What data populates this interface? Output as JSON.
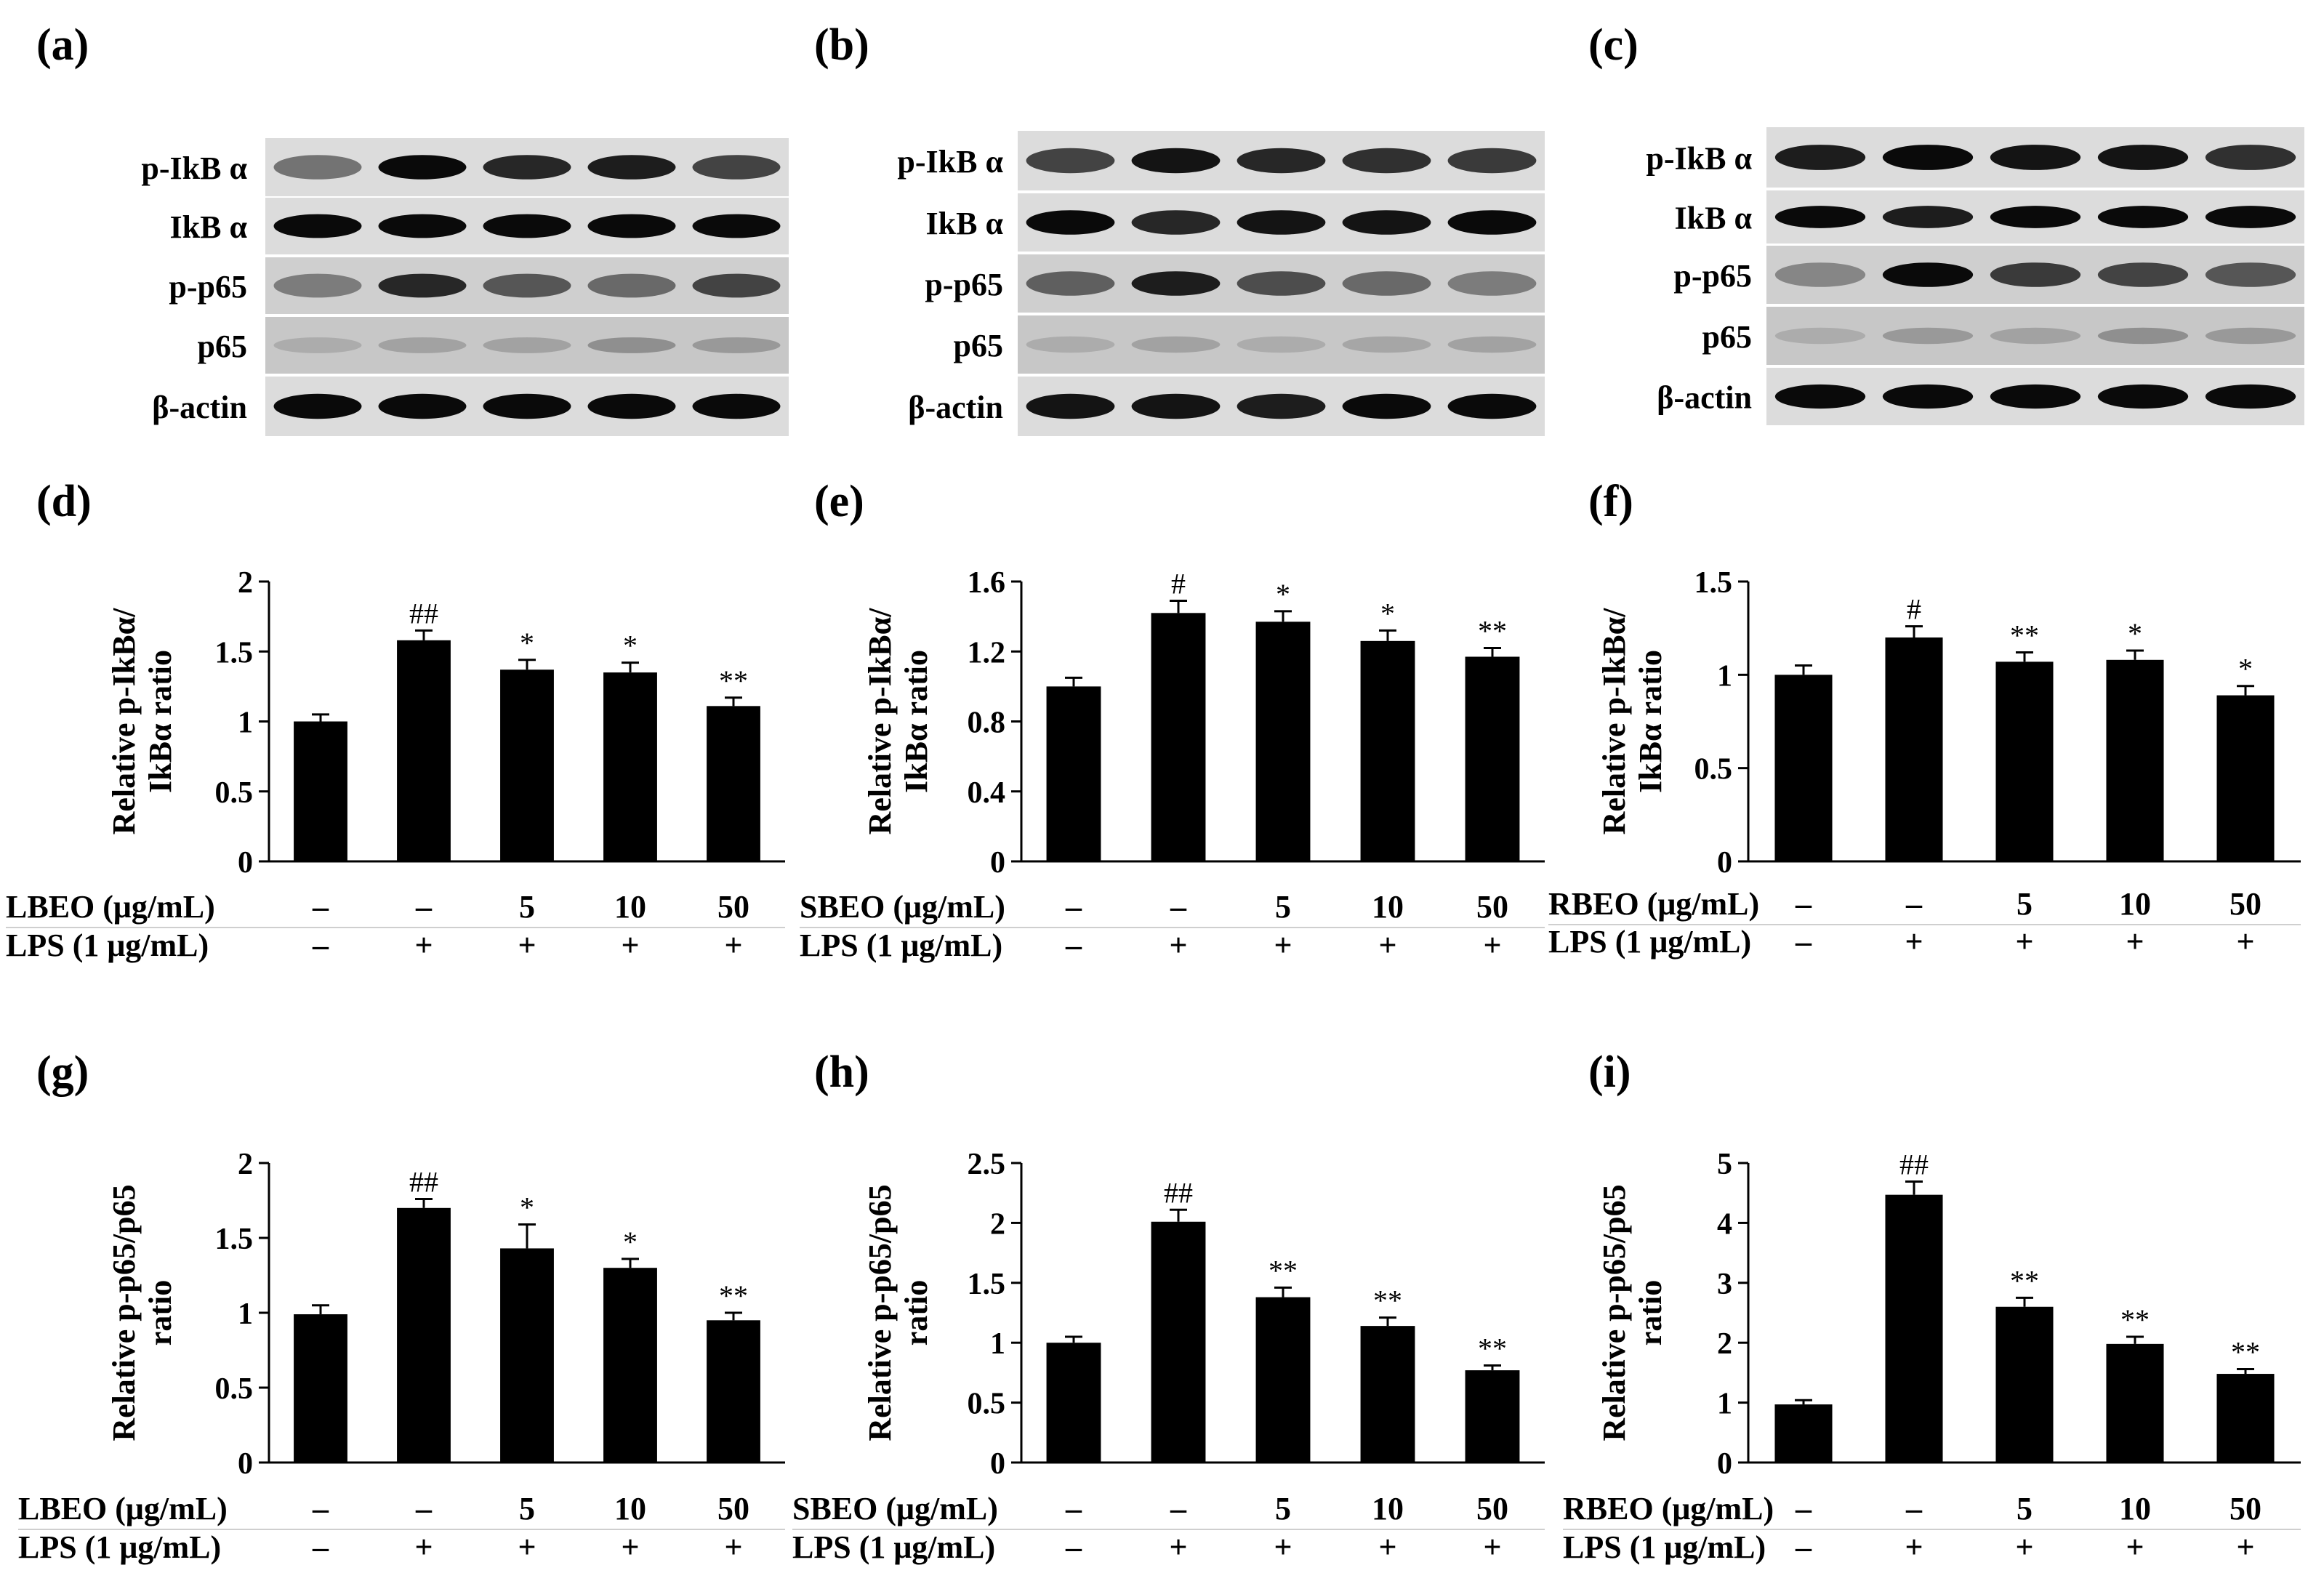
{
  "figure": {
    "blots": [
      {
        "panel": "(a)",
        "labels": [
          "p-IkB α",
          "IkB α",
          "p-p65",
          "p65",
          "β-actin"
        ]
      },
      {
        "panel": "(b)",
        "labels": [
          "p-IkB α",
          "IkB α",
          "p-p65",
          "p65",
          "β-actin"
        ]
      },
      {
        "panel": "(c)",
        "labels": [
          "p-IkB α",
          "IkB α",
          "p-p65",
          "p65",
          "β-actin"
        ]
      }
    ],
    "blot_band_intensity": [
      [
        [
          0.45,
          1.0,
          0.85,
          0.9,
          0.7
        ],
        [
          1,
          1,
          1,
          1,
          1
        ],
        [
          0.4,
          0.85,
          0.6,
          0.5,
          0.7
        ],
        [
          0.15,
          0.2,
          0.2,
          0.3,
          0.25
        ],
        [
          1,
          1,
          1,
          1,
          1
        ]
      ],
      [
        [
          0.7,
          0.95,
          0.85,
          0.8,
          0.75
        ],
        [
          1,
          0.85,
          0.95,
          0.95,
          1
        ],
        [
          0.55,
          0.9,
          0.65,
          0.5,
          0.4
        ],
        [
          0.15,
          0.2,
          0.15,
          0.18,
          0.2
        ],
        [
          0.95,
          0.95,
          0.9,
          1,
          1
        ]
      ],
      [
        [
          0.9,
          1,
          0.95,
          0.95,
          0.8
        ],
        [
          1,
          0.9,
          1,
          1,
          1
        ],
        [
          0.35,
          1,
          0.75,
          0.7,
          0.6
        ],
        [
          0.15,
          0.25,
          0.2,
          0.3,
          0.25
        ],
        [
          1,
          1,
          1,
          1,
          1
        ]
      ]
    ]
  },
  "chart_data": [
    {
      "panel": "(d)",
      "type": "bar",
      "ylabel": [
        "Relative p-IkBα/",
        "IkBα ratio"
      ],
      "yticks": [
        "0",
        "0.5",
        "1",
        "1.5",
        "2"
      ],
      "ylim": [
        0,
        2
      ],
      "values": [
        1.0,
        1.58,
        1.37,
        1.35,
        1.11
      ],
      "errors": [
        0.05,
        0.07,
        0.07,
        0.07,
        0.06
      ],
      "significance": [
        "",
        "##",
        "*",
        "*",
        "**"
      ],
      "treatment_label": "LBEO (μg/mL)",
      "treatment": [
        "–",
        "–",
        "5",
        "10",
        "50"
      ],
      "lps_label": "LPS (1 μg/mL)",
      "lps": [
        "–",
        "+",
        "+",
        "+",
        "+"
      ]
    },
    {
      "panel": "(e)",
      "type": "bar",
      "ylabel": [
        "Relative p-IkBα/",
        "IkBα ratio"
      ],
      "yticks": [
        "0",
        "0.4",
        "0.8",
        "1.2",
        "1.6"
      ],
      "ylim": [
        0,
        1.6
      ],
      "values": [
        1.0,
        1.42,
        1.37,
        1.26,
        1.17
      ],
      "errors": [
        0.05,
        0.07,
        0.06,
        0.06,
        0.05
      ],
      "significance": [
        "",
        "#",
        "*",
        "*",
        "**"
      ],
      "treatment_label": "SBEO (μg/mL)",
      "treatment": [
        "–",
        "–",
        "5",
        "10",
        "50"
      ],
      "lps_label": "LPS (1 μg/mL)",
      "lps": [
        "–",
        "+",
        "+",
        "+",
        "+"
      ]
    },
    {
      "panel": "(f)",
      "type": "bar",
      "ylabel": [
        "Relative p-IkBα/",
        "IkBα ratio"
      ],
      "yticks": [
        "0",
        "0.5",
        "1",
        "1.5"
      ],
      "ylim": [
        0,
        1.5
      ],
      "values": [
        1.0,
        1.2,
        1.07,
        1.08,
        0.89
      ],
      "errors": [
        0.05,
        0.06,
        0.05,
        0.05,
        0.05
      ],
      "significance": [
        "",
        "#",
        "**",
        "*",
        "*"
      ],
      "treatment_label": "RBEO (μg/mL)",
      "treatment": [
        "–",
        "–",
        "5",
        "10",
        "50"
      ],
      "lps_label": "LPS (1 μg/mL)",
      "lps": [
        "–",
        "+",
        "+",
        "+",
        "+"
      ]
    },
    {
      "panel": "(g)",
      "type": "bar",
      "ylabel": [
        "Relative p-p65/p65",
        "ratio"
      ],
      "yticks": [
        "0",
        "0.5",
        "1",
        "1.5",
        "2"
      ],
      "ylim": [
        0,
        2
      ],
      "values": [
        0.99,
        1.7,
        1.43,
        1.3,
        0.95
      ],
      "errors": [
        0.06,
        0.06,
        0.16,
        0.06,
        0.05
      ],
      "significance": [
        "",
        "##",
        "*",
        "*",
        "**"
      ],
      "treatment_label": "LBEO (μg/mL)",
      "treatment": [
        "–",
        "–",
        "5",
        "10",
        "50"
      ],
      "lps_label": "LPS (1 μg/mL)",
      "lps": [
        "–",
        "+",
        "+",
        "+",
        "+"
      ]
    },
    {
      "panel": "(h)",
      "type": "bar",
      "ylabel": [
        "Relative p-p65/p65",
        "ratio"
      ],
      "yticks": [
        "0",
        "0.5",
        "1",
        "1.5",
        "2",
        "2.5"
      ],
      "ylim": [
        0,
        2.5
      ],
      "values": [
        1.0,
        2.01,
        1.38,
        1.14,
        0.77
      ],
      "errors": [
        0.05,
        0.1,
        0.08,
        0.07,
        0.04
      ],
      "significance": [
        "",
        "##",
        "**",
        "**",
        "**"
      ],
      "treatment_label": "SBEO (μg/mL)",
      "treatment": [
        "–",
        "–",
        "5",
        "10",
        "50"
      ],
      "lps_label": "LPS (1 μg/mL)",
      "lps": [
        "–",
        "+",
        "+",
        "+",
        "+"
      ]
    },
    {
      "panel": "(i)",
      "type": "bar",
      "ylabel": [
        "Relative p-p65/p65",
        "ratio"
      ],
      "yticks": [
        "0",
        "1",
        "2",
        "3",
        "4",
        "5"
      ],
      "ylim": [
        0,
        5
      ],
      "values": [
        0.97,
        4.47,
        2.6,
        1.98,
        1.48
      ],
      "errors": [
        0.07,
        0.22,
        0.15,
        0.12,
        0.08
      ],
      "significance": [
        "",
        "##",
        "**",
        "**",
        "**"
      ],
      "treatment_label": "RBEO (μg/mL)",
      "treatment": [
        "–",
        "–",
        "5",
        "10",
        "50"
      ],
      "lps_label": "LPS (1 μg/mL)",
      "lps": [
        "–",
        "+",
        "+",
        "+",
        "+"
      ]
    }
  ]
}
